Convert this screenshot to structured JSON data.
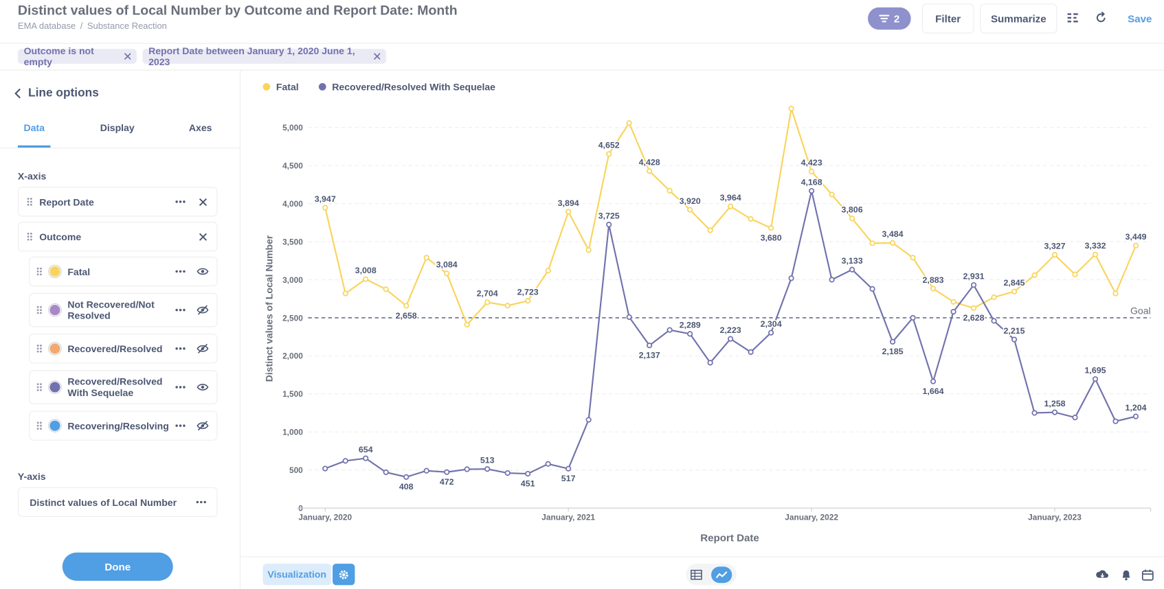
{
  "header": {
    "title": "Distinct values of Local Number by Outcome and Report Date: Month",
    "breadcrumb": [
      "EMA database",
      "Substance Reaction"
    ],
    "filter_count": "2",
    "filter_button": "Filter",
    "summarize_button": "Summarize",
    "save_button": "Save"
  },
  "filters": [
    "Outcome is not empty",
    "Report Date between January 1, 2020 June 1, 2023"
  ],
  "sidebar": {
    "title": "Line options",
    "tabs": [
      "Data",
      "Display",
      "Axes"
    ],
    "x_axis_heading": "X-axis",
    "x_fields": [
      "Report Date",
      "Outcome"
    ],
    "series": [
      {
        "name": "Fatal",
        "color": "#f9d45c",
        "visible": true
      },
      {
        "name": "Not Recovered/Not Resolved",
        "color": "#a989c5",
        "visible": false
      },
      {
        "name": "Recovered/Resolved",
        "color": "#f2a86f",
        "visible": false
      },
      {
        "name": "Recovered/Resolved With Sequelae",
        "color": "#7172ad",
        "visible": true
      },
      {
        "name": "Recovering/Resolving",
        "color": "#509ee3",
        "visible": false
      }
    ],
    "y_axis_heading": "Y-axis",
    "y_field": "Distinct values of Local Number",
    "done_button": "Done"
  },
  "footer": {
    "visualization_button": "Visualization"
  },
  "chart_data": {
    "type": "line",
    "x_label": "Report Date",
    "y_label": "Distinct values of Local Number",
    "categories": [
      "January, 2020",
      null,
      null,
      null,
      null,
      null,
      null,
      null,
      null,
      null,
      null,
      null,
      "January, 2021",
      null,
      null,
      null,
      null,
      null,
      null,
      null,
      null,
      null,
      null,
      null,
      "January, 2022",
      null,
      null,
      null,
      null,
      null,
      null,
      null,
      null,
      null,
      null,
      null,
      "January, 2023",
      null,
      null,
      null,
      null
    ],
    "series": [
      {
        "name": "Fatal",
        "color": "#f9d45c",
        "values": [
          3947,
          2820,
          3008,
          2875,
          2658,
          3290,
          3084,
          2410,
          2704,
          2660,
          2723,
          3120,
          3894,
          3390,
          4652,
          5060,
          4428,
          4170,
          3920,
          3650,
          3964,
          3800,
          3680,
          5250,
          4423,
          4120,
          3806,
          3480,
          3484,
          3290,
          2883,
          2710,
          2628,
          2770,
          2845,
          3060,
          3327,
          3070,
          3332,
          2820,
          3449
        ],
        "value_labels": [
          "3,947",
          null,
          "3,008",
          null,
          "2,658",
          null,
          "3,084",
          null,
          "2,704",
          null,
          "2,723",
          null,
          "3,894",
          null,
          "4,652",
          null,
          "4,428",
          null,
          "3,920",
          null,
          "3,964",
          null,
          "3,680",
          null,
          "4,423",
          null,
          "3,806",
          null,
          "3,484",
          null,
          "2,883",
          null,
          "2,628",
          null,
          "2,845",
          null,
          "3,327",
          null,
          "3,332",
          null,
          "3,449"
        ]
      },
      {
        "name": "Recovered/Resolved With Sequelae",
        "color": "#7172ad",
        "values": [
          519,
          620,
          654,
          470,
          408,
          490,
          472,
          510,
          513,
          460,
          451,
          580,
          517,
          1160,
          3725,
          2510,
          2137,
          2340,
          2289,
          1910,
          2223,
          2050,
          2304,
          3020,
          4168,
          3000,
          3133,
          2880,
          2185,
          2500,
          1664,
          2580,
          2931,
          2460,
          2215,
          1250,
          1258,
          1190,
          1695,
          1140,
          1204
        ],
        "value_labels": [
          null,
          null,
          "654",
          null,
          "408",
          null,
          "472",
          null,
          "513",
          null,
          "451",
          null,
          "517",
          null,
          "3,725",
          null,
          "2,137",
          null,
          "2,289",
          null,
          "2,223",
          null,
          "2,304",
          null,
          "4,168",
          null,
          "3,133",
          null,
          "2,185",
          null,
          "1,664",
          null,
          "2,931",
          null,
          "2,215",
          null,
          "1,258",
          null,
          "1,695",
          null,
          "1,204"
        ]
      }
    ],
    "ylim": [
      0,
      5500
    ],
    "yticks": [
      0,
      500,
      {
        "value": 1000,
        "label": "1,000"
      },
      {
        "value": 1500,
        "label": "1,500"
      },
      {
        "value": 2000,
        "label": "2,000"
      },
      {
        "value": 2500,
        "label": "2,500"
      },
      {
        "value": 3000,
        "label": "3,000"
      },
      {
        "value": 3500,
        "label": "3,500"
      },
      {
        "value": 4000,
        "label": "4,000"
      },
      {
        "value": 4500,
        "label": "4,500"
      },
      {
        "value": 5000,
        "label": "5,000"
      }
    ],
    "grid": true,
    "legend": "top-left",
    "goal": {
      "value": 2500,
      "label": "Goal"
    }
  }
}
